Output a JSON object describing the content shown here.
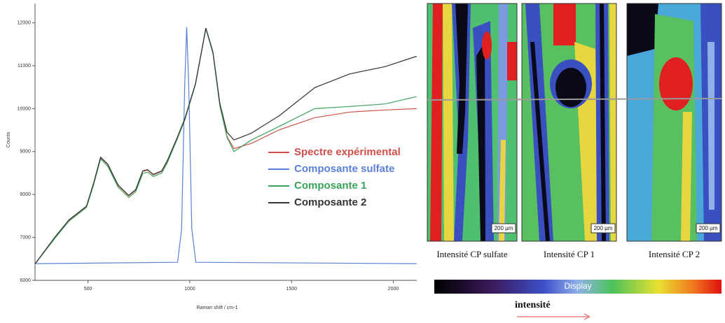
{
  "chart_data": {
    "type": "line",
    "x_label": "Raman shift / cm-1",
    "y_label": "Counts",
    "xlim": [
      240,
      2115
    ],
    "ylim": [
      6000,
      12450
    ],
    "xticks": [
      500,
      1000,
      1500,
      2000
    ],
    "yticks": [
      6000,
      7000,
      8000,
      9000,
      10000,
      11000,
      12000
    ],
    "grid": false,
    "series": [
      {
        "name": "Spectre expérimental",
        "color": "#d0504a",
        "x": [
          241,
          338,
          407,
          493,
          528,
          562,
          597,
          648,
          700,
          734,
          769,
          793,
          821,
          862,
          890,
          941,
          976,
          1028,
          1079,
          1114,
          1148,
          1183,
          1217,
          1303,
          1441,
          1614,
          1786,
          1959,
          2114
        ],
        "values": [
          6390,
          7000,
          7400,
          7720,
          8260,
          8860,
          8700,
          8210,
          7970,
          8100,
          8540,
          8570,
          8460,
          8540,
          8780,
          9350,
          9760,
          10570,
          11870,
          11300,
          10080,
          9350,
          9070,
          9190,
          9510,
          9790,
          9920,
          9970,
          10000
        ]
      },
      {
        "name": "Composante sulfate",
        "color": "#5a7fd6",
        "x": [
          241,
          940,
          960,
          975,
          985,
          995,
          1010,
          1030,
          2114
        ],
        "values": [
          6390,
          6420,
          7200,
          10500,
          11900,
          10500,
          7200,
          6420,
          6390
        ]
      },
      {
        "name": "Composante 1",
        "color": "#3aa25a",
        "x": [
          241,
          338,
          407,
          493,
          528,
          562,
          597,
          648,
          700,
          734,
          769,
          793,
          821,
          862,
          890,
          941,
          976,
          1028,
          1079,
          1114,
          1148,
          1183,
          1217,
          1303,
          1441,
          1614,
          1786,
          1959,
          2114
        ],
        "values": [
          6390,
          6980,
          7380,
          7700,
          8230,
          8830,
          8660,
          8170,
          7930,
          8060,
          8490,
          8520,
          8420,
          8500,
          8740,
          9320,
          9740,
          10560,
          11860,
          11290,
          10060,
          9330,
          9000,
          9270,
          9590,
          10000,
          10050,
          10110,
          10280
        ]
      },
      {
        "name": "Composante 2",
        "color": "#333333",
        "x": [
          241,
          338,
          407,
          493,
          528,
          562,
          597,
          648,
          700,
          734,
          769,
          793,
          821,
          862,
          890,
          941,
          976,
          1028,
          1079,
          1114,
          1148,
          1183,
          1217,
          1303,
          1441,
          1614,
          1786,
          1959,
          2114
        ],
        "values": [
          6390,
          7010,
          7410,
          7730,
          8270,
          8870,
          8710,
          8220,
          7980,
          8110,
          8550,
          8580,
          8470,
          8550,
          8790,
          9360,
          9770,
          10580,
          11880,
          11320,
          10120,
          9450,
          9270,
          9430,
          9840,
          10490,
          10810,
          10980,
          11220
        ]
      }
    ]
  },
  "maps": [
    {
      "caption": "Intensité CP sulfate",
      "scale_label": "200 µm"
    },
    {
      "caption": "Intensité CP 1",
      "scale_label": "200 µm"
    },
    {
      "caption": "Intensité  CP 2",
      "scale_label": "200 µm"
    }
  ],
  "colorbar": {
    "label": "Display",
    "axis_label": "intensité"
  }
}
